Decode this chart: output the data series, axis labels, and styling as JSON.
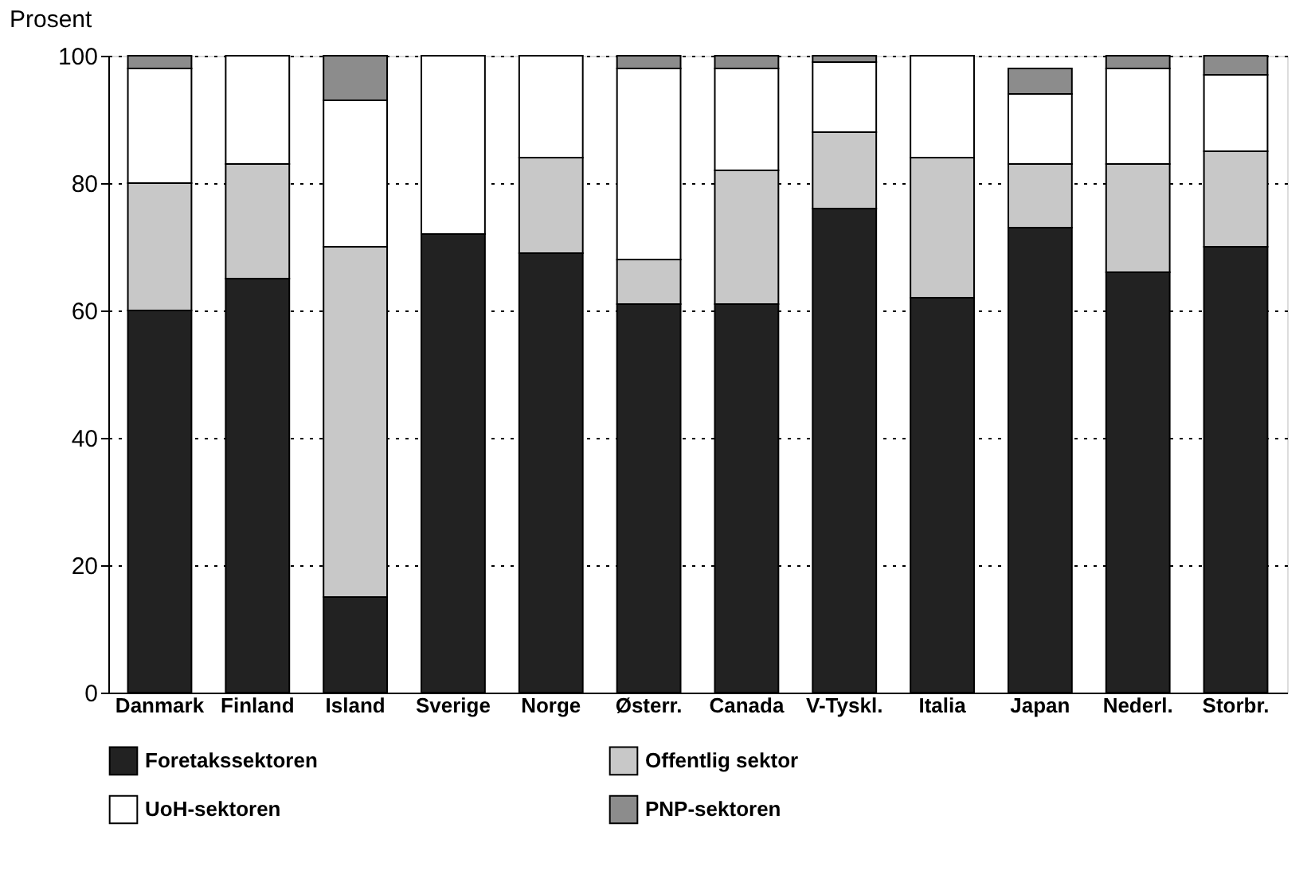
{
  "chart_data": {
    "type": "bar",
    "stacked": true,
    "ylabel": "Prosent",
    "categories": [
      "Danmark",
      "Finland",
      "Island",
      "Sverige",
      "Norge",
      "Østerr.",
      "Canada",
      "V-Tyskl.",
      "Italia",
      "Japan",
      "Nederl.",
      "Storbr."
    ],
    "series": [
      {
        "name": "Foretakssektoren",
        "color": "#222222",
        "values": [
          60,
          65,
          15,
          72,
          69,
          61,
          61,
          76,
          62,
          73,
          66,
          70
        ]
      },
      {
        "name": "Offentlig sektor",
        "color": "#c8c8c8",
        "values": [
          20,
          18,
          55,
          0,
          15,
          7,
          21,
          12,
          22,
          10,
          17,
          15
        ]
      },
      {
        "name": "UoH-sektoren",
        "color": "#ffffff",
        "values": [
          18,
          17,
          23,
          28,
          16,
          30,
          16,
          11,
          16,
          11,
          15,
          12
        ]
      },
      {
        "name": "PNP-sektoren",
        "color": "#8c8c8c",
        "values": [
          2,
          0,
          7,
          0,
          0,
          2,
          2,
          1,
          0,
          4,
          2,
          3
        ]
      }
    ],
    "ylim": [
      0,
      100
    ],
    "yticks": [
      0,
      20,
      40,
      60,
      80,
      100
    ],
    "grid": "y",
    "legend": "bottom"
  }
}
